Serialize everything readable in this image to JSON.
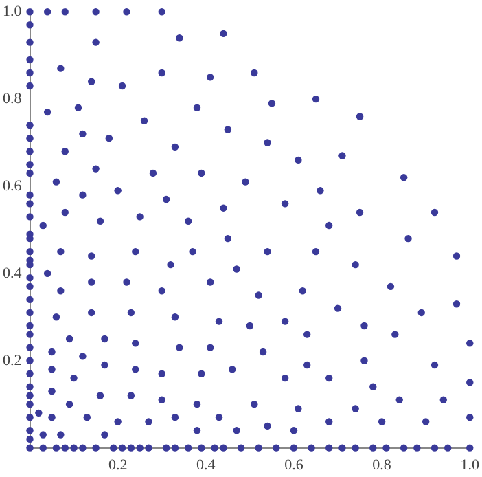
{
  "chart_data": {
    "type": "scatter",
    "marker": "circle",
    "grid": false,
    "legend": false,
    "xlim": [
      0,
      1
    ],
    "ylim": [
      0,
      1
    ],
    "xticks": [
      0.2,
      0.4,
      0.6,
      0.8,
      {
        "value": 1,
        "label": "1.0"
      }
    ],
    "yticks": [
      0.2,
      0.4,
      0.6,
      0.8,
      {
        "value": 1,
        "label": "1.0"
      }
    ],
    "series": [
      {
        "color": "#3a3a9a",
        "x": [
          0,
          0,
          0,
          0,
          0,
          0,
          0,
          0,
          0,
          0,
          0,
          0,
          0,
          0,
          0,
          0,
          0,
          0,
          0,
          0,
          0,
          0,
          0,
          0,
          0,
          0,
          0,
          0,
          0,
          0,
          0,
          0,
          0,
          0,
          0,
          0.04,
          0.08,
          0.15,
          0.22,
          0.3,
          0.34,
          0.44,
          0.15,
          0.07,
          0.3,
          0.41,
          0.14,
          0.21,
          0.04,
          0.11,
          0.38,
          0.26,
          0.45,
          0.12,
          0.18,
          0.33,
          0.08,
          0.15,
          0.28,
          0.39,
          0.06,
          0.49,
          0.12,
          0.2,
          0.31,
          0.08,
          0.44,
          0.03,
          0.16,
          0.25,
          0.36,
          0.51,
          0.55,
          0.65,
          0.75,
          0.54,
          0.61,
          0.71,
          0.85,
          0.66,
          0.58,
          0.75,
          0.92,
          0.68,
          0.03,
          0.06,
          0.08,
          0.1,
          0.12,
          0.15,
          0.19,
          0.21,
          0.23,
          0.25,
          0.27,
          0.31,
          0.33,
          0.36,
          0.39,
          0.42,
          0.44,
          0.48,
          0.52,
          0.56,
          0.6,
          0.64,
          0.68,
          0.71,
          0.74,
          0.78,
          0.81,
          0.85,
          0.88,
          0.92,
          0.95,
          1,
          0.45,
          0.07,
          0.14,
          0.24,
          0.37,
          0.32,
          0.04,
          0.47,
          0.14,
          0.22,
          0.41,
          0.07,
          0.3,
          0.06,
          0.14,
          0.23,
          0.33,
          0.43,
          0.5,
          0.09,
          0.17,
          0.24,
          0.34,
          0.41,
          0.05,
          0.12,
          0.17,
          0.05,
          0.24,
          0.3,
          0.39,
          0.46,
          0.1,
          0.05,
          0.16,
          0.23,
          0.3,
          0.09,
          0.38,
          0.02,
          0.05,
          0.13,
          0.2,
          0.27,
          0.33,
          0.43,
          0.38,
          0.47,
          0.03,
          0.07,
          0.17,
          0.86,
          0.54,
          0.65,
          0.97,
          0.74,
          0.82,
          0.52,
          0.62,
          0.7,
          0.89,
          0.97,
          0.58,
          0.63,
          0.76,
          0.83,
          1,
          0.53,
          0.63,
          0.76,
          0.92,
          0.58,
          0.68,
          0.78,
          1,
          0.51,
          0.61,
          0.74,
          0.84,
          0.94,
          1,
          0.54,
          0.6,
          0.68,
          0.8,
          0.9
        ],
        "values": [
          1,
          0.97,
          0.93,
          0.89,
          0.86,
          0.83,
          0.74,
          0.71,
          0.68,
          0.65,
          0.63,
          0.58,
          0.56,
          0.53,
          0.49,
          0.45,
          0.43,
          0.42,
          0.39,
          0.37,
          0.34,
          0.31,
          0.28,
          0.26,
          0.23,
          0.2,
          0.17,
          0.14,
          0.12,
          0.1,
          0.07,
          0.04,
          0.02,
          0,
          0.48,
          1,
          1,
          1,
          1,
          1,
          0.94,
          0.95,
          0.93,
          0.87,
          0.86,
          0.85,
          0.84,
          0.83,
          0.77,
          0.78,
          0.78,
          0.75,
          0.73,
          0.72,
          0.71,
          0.69,
          0.68,
          0.64,
          0.63,
          0.63,
          0.61,
          0.61,
          0.58,
          0.59,
          0.57,
          0.54,
          0.55,
          0.51,
          0.52,
          0.53,
          0.52,
          0.86,
          0.79,
          0.8,
          0.76,
          0.7,
          0.66,
          0.67,
          0.62,
          0.59,
          0.56,
          0.54,
          0.54,
          0.51,
          0,
          0,
          0,
          0,
          0,
          0,
          0,
          0,
          0,
          0,
          0,
          0,
          0,
          0,
          0,
          0,
          0,
          0,
          0,
          0,
          0,
          0,
          0,
          0,
          0,
          0,
          0,
          0,
          0,
          0,
          0,
          0,
          0.48,
          0.45,
          0.44,
          0.45,
          0.45,
          0.42,
          0.4,
          0.41,
          0.38,
          0.38,
          0.38,
          0.36,
          0.36,
          0.3,
          0.31,
          0.31,
          0.3,
          0.29,
          0.28,
          0.25,
          0.25,
          0.24,
          0.23,
          0.23,
          0.22,
          0.21,
          0.19,
          0.18,
          0.18,
          0.17,
          0.17,
          0.18,
          0.16,
          0.13,
          0.12,
          0.12,
          0.11,
          0.1,
          0.1,
          0.08,
          0.07,
          0.07,
          0.06,
          0.06,
          0.07,
          0.07,
          0.04,
          0.04,
          0.03,
          0.03,
          0.03,
          0.48,
          0.45,
          0.45,
          0.44,
          0.42,
          0.37,
          0.35,
          0.36,
          0.32,
          0.31,
          0.33,
          0.29,
          0.26,
          0.28,
          0.26,
          0.24,
          0.22,
          0.19,
          0.2,
          0.19,
          0.16,
          0.16,
          0.14,
          0.15,
          0.1,
          0.09,
          0.09,
          0.11,
          0.11,
          0.07,
          0.05,
          0.04,
          0.06,
          0.06,
          0.06
        ]
      }
    ]
  }
}
